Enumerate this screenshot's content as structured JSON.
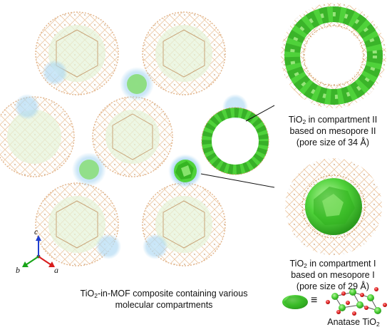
{
  "caption_main": {
    "line1_pre": "TiO",
    "line1_sub": "2",
    "line1_post": "-in-MOF composite containing various",
    "line2": "molecular compartments"
  },
  "compartment_II": {
    "line1_pre": "TiO",
    "line1_sub": "2",
    "line1_post": " in compartment II",
    "line2": "based on mesopore II",
    "line3": "(pore size of 34 Å)"
  },
  "compartment_I": {
    "line1_pre": "TiO",
    "line1_sub": "2",
    "line1_post": " in compartment I",
    "line2": "based on mesopore I",
    "line3": "(pore size of 29 Å)"
  },
  "legend": {
    "equiv": "≡",
    "anatase_pre": "Anatase TiO",
    "anatase_sub": "2"
  },
  "axes": {
    "c": "c",
    "b": "b",
    "a": "a"
  },
  "colors": {
    "tio2_green": "#4fd23a",
    "ti_ball": "#49c82f",
    "o_ball": "#e02020",
    "pore_blue": "#a9d6f2",
    "framework_orange": "#e8b98a",
    "framework_gray": "#9a9a9a",
    "axis_c": "#1f3fd0",
    "axis_b": "#18a418",
    "axis_a": "#d81c1c"
  }
}
